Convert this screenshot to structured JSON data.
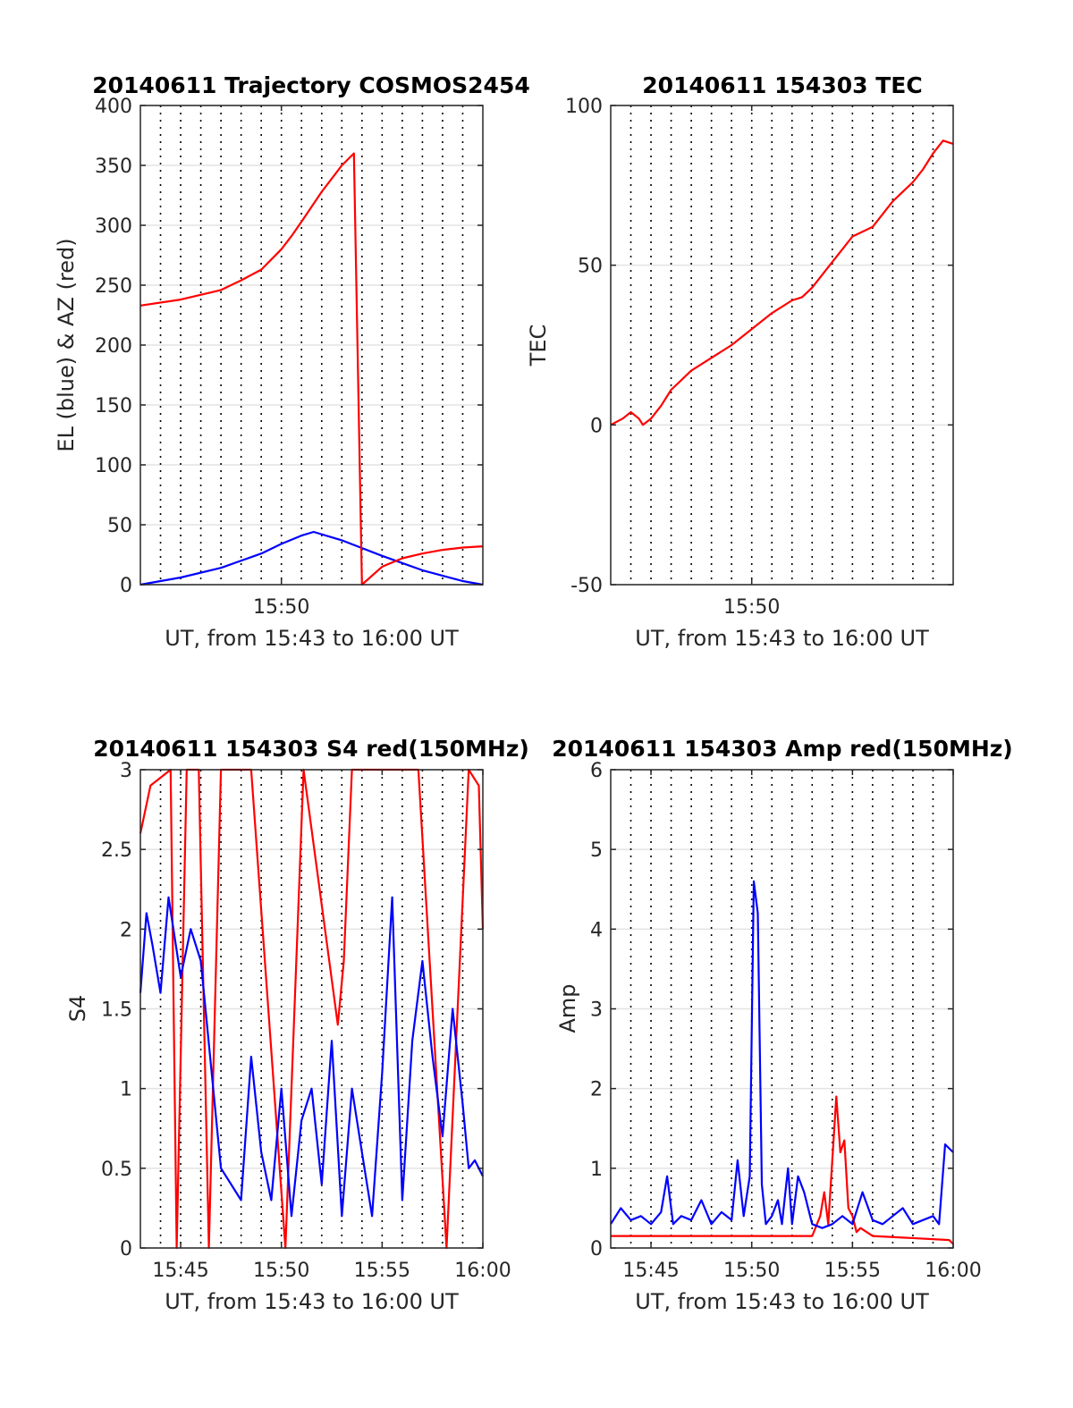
{
  "chart_data": [
    {
      "type": "line",
      "title": "20140611 Trajectory COSMOS2454",
      "xlabel": "UT, from 15:43 to 16:00 UT",
      "ylabel": "EL (blue) & AZ (red)",
      "xlim": [
        0,
        17
      ],
      "ylim": [
        0,
        400
      ],
      "yticks": [
        0,
        50,
        100,
        150,
        200,
        250,
        300,
        350,
        400
      ],
      "ytick_labels": [
        "0",
        "50",
        "100",
        "150",
        "200",
        "250",
        "300",
        "350",
        "400"
      ],
      "xticks": [
        7
      ],
      "xtick_labels": [
        "15:50"
      ],
      "grid": true,
      "series": [
        {
          "name": "EL",
          "color": "#0000ff",
          "x": [
            0,
            2,
            4,
            6,
            7,
            8,
            8.6,
            10,
            12,
            14,
            16,
            17
          ],
          "y": [
            0,
            6,
            14,
            26,
            34,
            41,
            44,
            37,
            24,
            12,
            3,
            0
          ]
        },
        {
          "name": "AZ",
          "color": "#ff0000",
          "x": [
            0,
            2,
            4,
            5,
            6,
            7,
            7.5,
            8,
            9,
            10,
            10.6,
            11,
            12,
            13,
            14,
            15,
            16,
            17
          ],
          "y": [
            233,
            238,
            246,
            254,
            263,
            280,
            291,
            303,
            328,
            350,
            360,
            0,
            15,
            22,
            26,
            29,
            31,
            32
          ]
        }
      ]
    },
    {
      "type": "line",
      "title": "20140611 154303 TEC",
      "xlabel": "UT, from 15:43 to 16:00 UT",
      "ylabel": "TEC",
      "xlim": [
        0,
        17
      ],
      "ylim": [
        -50,
        100
      ],
      "yticks": [
        -50,
        0,
        50,
        100
      ],
      "ytick_labels": [
        "-50",
        "0",
        "50",
        "100"
      ],
      "xticks": [
        7
      ],
      "xtick_labels": [
        "15:50"
      ],
      "grid": true,
      "series": [
        {
          "name": "TEC",
          "color": "#ff0000",
          "x": [
            0,
            0.6,
            1.0,
            1.4,
            1.6,
            2,
            2.5,
            3,
            4,
            5,
            6,
            7,
            8,
            9,
            9.5,
            10,
            11,
            11.5,
            12,
            13,
            14,
            15,
            15.5,
            16,
            16.5,
            17
          ],
          "y": [
            0,
            2,
            4,
            2,
            0,
            2,
            6,
            11,
            17,
            21,
            25,
            30,
            35,
            39,
            40,
            43,
            51,
            55,
            59,
            62,
            70,
            76,
            80,
            85,
            89,
            88
          ]
        }
      ]
    },
    {
      "type": "line",
      "title": "20140611 154303 S4 red(150MHz)",
      "xlabel": "UT, from 15:43 to 16:00 UT",
      "ylabel": "S4",
      "xlim": [
        0,
        17
      ],
      "ylim": [
        0,
        3
      ],
      "yticks": [
        0,
        0.5,
        1,
        1.5,
        2,
        2.5,
        3
      ],
      "ytick_labels": [
        "0",
        "0.5",
        "1",
        "1.5",
        "2",
        "2.5",
        "3"
      ],
      "xticks": [
        2,
        7,
        12,
        17
      ],
      "xtick_labels": [
        "15:45",
        "15:50",
        "15:55",
        "16:00"
      ],
      "grid": true,
      "series": [
        {
          "name": "S4 red",
          "color": "#ff0000",
          "x": [
            0,
            0.5,
            1.5,
            1.8,
            2.3,
            2.9,
            3.4,
            4.0,
            5.5,
            7.2,
            8.1,
            9.8,
            10.1,
            10.5,
            11.5,
            13.8,
            15.2,
            16.3,
            16.8,
            17
          ],
          "y": [
            2.6,
            2.9,
            3,
            0,
            3,
            3,
            0,
            3,
            3,
            0,
            3,
            1.4,
            1.8,
            3,
            3,
            3,
            0,
            3,
            2.9,
            2.0
          ]
        },
        {
          "name": "S4 blue",
          "color": "#0000ff",
          "x": [
            0,
            0.3,
            0.6,
            1.0,
            1.4,
            2.0,
            2.5,
            3.0,
            4.0,
            5.0,
            5.5,
            6.0,
            6.5,
            7.0,
            7.5,
            8.0,
            8.5,
            9.0,
            9.5,
            10.0,
            10.5,
            11.0,
            11.5,
            12.0,
            12.5,
            13.0,
            13.5,
            14.0,
            14.5,
            15.0,
            15.5,
            16.0,
            16.3,
            16.6,
            17
          ],
          "y": [
            1.6,
            2.1,
            1.9,
            1.6,
            2.2,
            1.7,
            2.0,
            1.8,
            0.5,
            0.3,
            1.2,
            0.6,
            0.3,
            1.0,
            0.2,
            0.8,
            1.0,
            0.4,
            1.3,
            0.2,
            1.0,
            0.6,
            0.2,
            1.1,
            2.2,
            0.3,
            1.3,
            1.8,
            1.2,
            0.7,
            1.5,
            0.9,
            0.5,
            0.55,
            0.45
          ]
        }
      ]
    },
    {
      "type": "line",
      "title": "20140611 154303 Amp red(150MHz)",
      "xlabel": "UT, from 15:43 to 16:00 UT",
      "ylabel": "Amp",
      "xlim": [
        0,
        17
      ],
      "ylim": [
        0,
        6
      ],
      "yticks": [
        0,
        1,
        2,
        3,
        4,
        5,
        6
      ],
      "ytick_labels": [
        "0",
        "1",
        "2",
        "3",
        "4",
        "5",
        "6"
      ],
      "xticks": [
        2,
        7,
        12,
        17
      ],
      "xtick_labels": [
        "15:45",
        "15:50",
        "15:55",
        "16:00"
      ],
      "grid": true,
      "series": [
        {
          "name": "Amp red",
          "color": "#ff0000",
          "x": [
            0,
            10.0,
            10.4,
            10.6,
            10.8,
            11.0,
            11.2,
            11.4,
            11.6,
            11.8,
            12.0,
            12.2,
            12.4,
            13.0,
            16.8,
            17
          ],
          "y": [
            0.15,
            0.15,
            0.4,
            0.7,
            0.3,
            1.1,
            1.9,
            1.2,
            1.35,
            0.5,
            0.4,
            0.2,
            0.25,
            0.15,
            0.1,
            0.05
          ]
        },
        {
          "name": "Amp blue",
          "color": "#0000ff",
          "x": [
            0,
            0.5,
            1.0,
            1.5,
            2.0,
            2.5,
            2.8,
            3.1,
            3.5,
            4.0,
            4.5,
            5.0,
            5.5,
            6.0,
            6.3,
            6.6,
            6.9,
            7.1,
            7.3,
            7.5,
            7.7,
            8.0,
            8.3,
            8.5,
            8.8,
            9.0,
            9.3,
            9.6,
            10.0,
            10.5,
            11.0,
            11.5,
            12.0,
            12.5,
            13.0,
            13.5,
            14.0,
            14.5,
            15.0,
            15.5,
            16.0,
            16.3,
            16.6,
            17
          ],
          "y": [
            0.3,
            0.5,
            0.35,
            0.4,
            0.3,
            0.45,
            0.9,
            0.3,
            0.4,
            0.35,
            0.6,
            0.3,
            0.45,
            0.35,
            1.1,
            0.4,
            0.9,
            4.6,
            4.2,
            0.8,
            0.3,
            0.4,
            0.6,
            0.3,
            1.0,
            0.3,
            0.9,
            0.7,
            0.3,
            0.25,
            0.3,
            0.4,
            0.3,
            0.7,
            0.35,
            0.3,
            0.4,
            0.5,
            0.3,
            0.35,
            0.4,
            0.3,
            1.3,
            1.2
          ]
        }
      ]
    }
  ]
}
